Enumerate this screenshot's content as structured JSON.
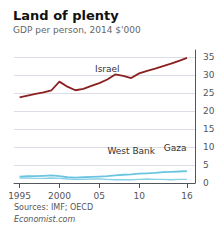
{
  "chart_data": {
    "type": "line",
    "title": "Land of plenty",
    "subtitle": "GDP per person, 2014 $'000",
    "source": "Sources: IMF; OECD",
    "credit": "Economist.com",
    "x": [
      1995,
      1996,
      1997,
      1998,
      1999,
      2000,
      2001,
      2002,
      2003,
      2004,
      2005,
      2006,
      2007,
      2008,
      2009,
      2010,
      2011,
      2012,
      2013,
      2014,
      2015,
      2016
    ],
    "series": [
      {
        "name": "Israel",
        "color": "#8b2020",
        "values": [
          23.8,
          24.3,
          24.8,
          25.2,
          25.8,
          28.2,
          26.8,
          25.8,
          26.2,
          27.0,
          27.8,
          28.8,
          30.2,
          29.8,
          29.2,
          30.5,
          31.2,
          31.8,
          32.5,
          33.2,
          34.0,
          34.8
        ]
      },
      {
        "name": "West Bank",
        "color": "#6cc5e0",
        "values": [
          1.8,
          1.9,
          1.9,
          2.0,
          2.1,
          1.9,
          1.6,
          1.5,
          1.6,
          1.7,
          1.8,
          1.9,
          2.1,
          2.3,
          2.4,
          2.6,
          2.7,
          2.8,
          3.0,
          3.1,
          3.2,
          3.3
        ]
      },
      {
        "name": "Gaza",
        "color": "#6cc5e0",
        "values": [
          1.4,
          1.4,
          1.3,
          1.3,
          1.4,
          1.3,
          1.1,
          1.0,
          1.0,
          1.1,
          1.1,
          1.0,
          0.9,
          0.9,
          0.9,
          1.0,
          1.1,
          1.0,
          1.0,
          0.9,
          1.0,
          1.0
        ]
      }
    ],
    "xlim": [
      1994.3,
      2017.0
    ],
    "xticks": [
      1995,
      2000,
      {
        "value": 2005,
        "label": "05"
      },
      {
        "value": 2010,
        "label": "10"
      },
      {
        "value": 2016,
        "label": "16"
      }
    ],
    "ylim": [
      0,
      37
    ],
    "yticks": [
      0,
      5,
      10,
      15,
      20,
      25,
      30,
      35
    ],
    "grid": true
  }
}
